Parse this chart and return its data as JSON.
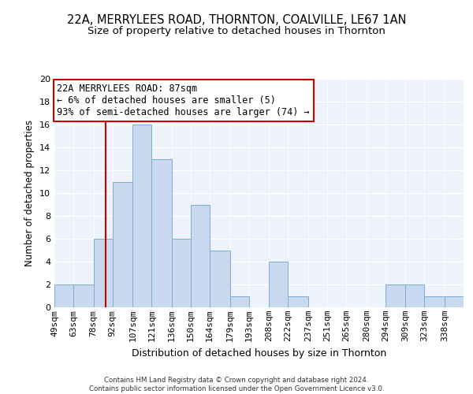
{
  "title": "22A, MERRYLEES ROAD, THORNTON, COALVILLE, LE67 1AN",
  "subtitle": "Size of property relative to detached houses in Thornton",
  "xlabel": "Distribution of detached houses by size in Thornton",
  "ylabel": "Number of detached properties",
  "bin_labels": [
    "49sqm",
    "63sqm",
    "78sqm",
    "92sqm",
    "107sqm",
    "121sqm",
    "136sqm",
    "150sqm",
    "164sqm",
    "179sqm",
    "193sqm",
    "208sqm",
    "222sqm",
    "237sqm",
    "251sqm",
    "265sqm",
    "280sqm",
    "294sqm",
    "309sqm",
    "323sqm",
    "338sqm"
  ],
  "bin_edges": [
    49,
    63,
    78,
    92,
    107,
    121,
    136,
    150,
    164,
    179,
    193,
    208,
    222,
    237,
    251,
    265,
    280,
    294,
    309,
    323,
    338,
    352
  ],
  "bar_values": [
    2,
    2,
    6,
    11,
    16,
    13,
    6,
    9,
    5,
    1,
    0,
    4,
    1,
    0,
    0,
    0,
    0,
    2,
    2,
    1,
    1
  ],
  "bar_color": "#c8d8ee",
  "bar_edge_color": "#7aadd4",
  "property_sqm": 87,
  "red_line_color": "#cc0000",
  "annotation_line1": "22A MERRYLEES ROAD: 87sqm",
  "annotation_line2": "← 6% of detached houses are smaller (5)",
  "annotation_line3": "93% of semi-detached houses are larger (74) →",
  "annotation_box_color": "#cc0000",
  "ylim": [
    0,
    20
  ],
  "yticks": [
    0,
    2,
    4,
    6,
    8,
    10,
    12,
    14,
    16,
    18,
    20
  ],
  "background_color": "#edf2fb",
  "grid_color": "#ffffff",
  "footer_text": "Contains HM Land Registry data © Crown copyright and database right 2024.\nContains public sector information licensed under the Open Government Licence v3.0.",
  "title_fontsize": 10.5,
  "subtitle_fontsize": 9.5,
  "xlabel_fontsize": 9,
  "ylabel_fontsize": 8.5,
  "tick_fontsize": 8,
  "annotation_fontsize": 8.5
}
